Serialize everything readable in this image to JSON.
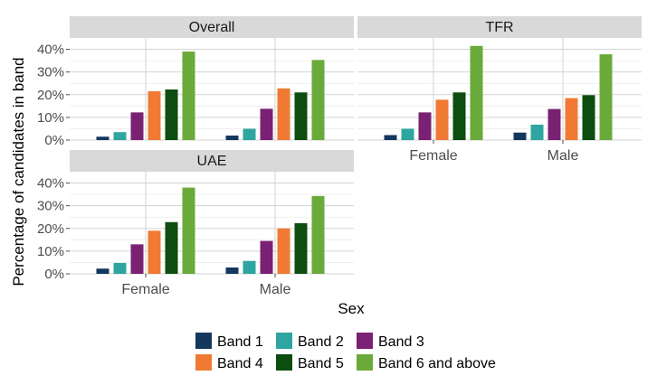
{
  "chart_data": {
    "type": "bar",
    "xlabel": "Sex",
    "ylabel": "Percentage of candidates in band",
    "ylim": [
      0,
      45
    ],
    "yticks": [
      0,
      10,
      20,
      30,
      40
    ],
    "ytick_labels": [
      "0%",
      "10%",
      "20%",
      "30%",
      "40%"
    ],
    "categories": [
      "Female",
      "Male"
    ],
    "grid": true,
    "legend_position": "bottom",
    "series_names": [
      "Band 1",
      "Band 2",
      "Band 3",
      "Band 4",
      "Band 5",
      "Band 6 and above"
    ],
    "series_colors": [
      "#14375e",
      "#2ea5a0",
      "#7a2173",
      "#f07a33",
      "#0d4d10",
      "#6aaa3a"
    ],
    "panels": [
      {
        "title": "Overall",
        "values": {
          "Female": [
            1.5,
            3.5,
            12.2,
            21.5,
            22.3,
            39.0
          ],
          "Male": [
            2.0,
            5.0,
            13.8,
            22.8,
            21.0,
            35.3
          ]
        }
      },
      {
        "title": "TFR",
        "values": {
          "Female": [
            2.2,
            5.0,
            12.2,
            17.8,
            21.0,
            41.5
          ],
          "Male": [
            3.3,
            6.8,
            13.7,
            18.5,
            19.8,
            37.8
          ]
        }
      },
      {
        "title": "UAE",
        "values": {
          "Female": [
            2.3,
            4.8,
            13.0,
            19.0,
            22.8,
            38.0
          ],
          "Male": [
            2.8,
            5.7,
            14.5,
            20.0,
            22.3,
            34.3
          ]
        }
      }
    ]
  }
}
